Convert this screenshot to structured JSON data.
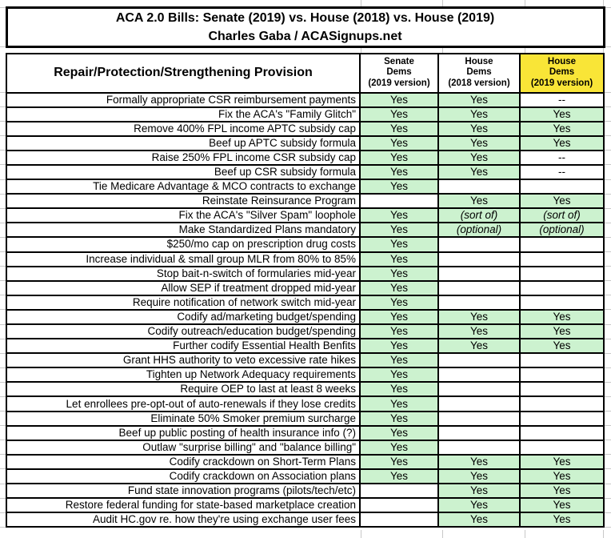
{
  "chart_data": {
    "type": "table",
    "title": "ACA 2.0 Bills: Senate (2019) vs. House (2018) vs. House (2019)",
    "subtitle": "Charles Gaba / ACASignups.net",
    "provision_header": "Repair/Protection/Strengthening Provision",
    "columns": [
      {
        "label": "Senate\nDems\n(2019 version)",
        "highlight": false
      },
      {
        "label": "House\nDems\n(2018 version)",
        "highlight": false
      },
      {
        "label": "House\nDems\n(2019 version)",
        "highlight": true
      }
    ],
    "rows": [
      {
        "provision": "Formally appropriate CSR reimbursement payments",
        "cells": [
          {
            "text": "Yes",
            "green": true
          },
          {
            "text": "Yes",
            "green": true
          },
          {
            "text": "--",
            "green": false
          }
        ]
      },
      {
        "provision": "Fix the ACA's \"Family Glitch\"",
        "cells": [
          {
            "text": "Yes",
            "green": true
          },
          {
            "text": "Yes",
            "green": true
          },
          {
            "text": "Yes",
            "green": true
          }
        ]
      },
      {
        "provision": "Remove 400% FPL income APTC subsidy cap",
        "cells": [
          {
            "text": "Yes",
            "green": true
          },
          {
            "text": "Yes",
            "green": true
          },
          {
            "text": "Yes",
            "green": true
          }
        ]
      },
      {
        "provision": "Beef up APTC subsidy formula",
        "cells": [
          {
            "text": "Yes",
            "green": true
          },
          {
            "text": "Yes",
            "green": true
          },
          {
            "text": "Yes",
            "green": true
          }
        ]
      },
      {
        "provision": "Raise 250% FPL income CSR subsidy cap",
        "cells": [
          {
            "text": "Yes",
            "green": true
          },
          {
            "text": "Yes",
            "green": true
          },
          {
            "text": "--",
            "green": false
          }
        ]
      },
      {
        "provision": "Beef up CSR subsidy formula",
        "cells": [
          {
            "text": "Yes",
            "green": true
          },
          {
            "text": "Yes",
            "green": true
          },
          {
            "text": "--",
            "green": false
          }
        ]
      },
      {
        "provision": "Tie Medicare Advantage & MCO contracts to exchange",
        "cells": [
          {
            "text": "Yes",
            "green": true
          },
          {
            "text": "",
            "green": false
          },
          {
            "text": "",
            "green": false
          }
        ]
      },
      {
        "provision": "Reinstate Reinsurance Program",
        "cells": [
          {
            "text": "",
            "green": false
          },
          {
            "text": "Yes",
            "green": true
          },
          {
            "text": "Yes",
            "green": true
          }
        ]
      },
      {
        "provision": "Fix the ACA's \"Silver Spam\" loophole",
        "cells": [
          {
            "text": "Yes",
            "green": true
          },
          {
            "text": "(sort of)",
            "green": true,
            "italic": true
          },
          {
            "text": "(sort of)",
            "green": true,
            "italic": true
          }
        ]
      },
      {
        "provision": "Make Standardized Plans mandatory",
        "cells": [
          {
            "text": "Yes",
            "green": true
          },
          {
            "text": "(optional)",
            "green": true,
            "italic": true
          },
          {
            "text": "(optional)",
            "green": true,
            "italic": true
          }
        ]
      },
      {
        "provision": "$250/mo cap on prescription drug costs",
        "cells": [
          {
            "text": "Yes",
            "green": true
          },
          {
            "text": "",
            "green": false
          },
          {
            "text": "",
            "green": false
          }
        ]
      },
      {
        "provision": "Increase individual & small group MLR from 80% to 85%",
        "cells": [
          {
            "text": "Yes",
            "green": true
          },
          {
            "text": "",
            "green": false
          },
          {
            "text": "",
            "green": false
          }
        ]
      },
      {
        "provision": "Stop bait-n-switch of formularies mid-year",
        "cells": [
          {
            "text": "Yes",
            "green": true
          },
          {
            "text": "",
            "green": false
          },
          {
            "text": "",
            "green": false
          }
        ]
      },
      {
        "provision": "Allow SEP if treatment dropped mid-year",
        "cells": [
          {
            "text": "Yes",
            "green": true
          },
          {
            "text": "",
            "green": false
          },
          {
            "text": "",
            "green": false
          }
        ]
      },
      {
        "provision": "Require notification of network switch mid-year",
        "cells": [
          {
            "text": "Yes",
            "green": true
          },
          {
            "text": "",
            "green": false
          },
          {
            "text": "",
            "green": false
          }
        ]
      },
      {
        "provision": "Codify ad/marketing budget/spending",
        "cells": [
          {
            "text": "Yes",
            "green": true
          },
          {
            "text": "Yes",
            "green": true
          },
          {
            "text": "Yes",
            "green": true
          }
        ]
      },
      {
        "provision": "Codify outreach/education budget/spending",
        "cells": [
          {
            "text": "Yes",
            "green": true
          },
          {
            "text": "Yes",
            "green": true
          },
          {
            "text": "Yes",
            "green": true
          }
        ]
      },
      {
        "provision": "Further codify Essential Health Benfits",
        "cells": [
          {
            "text": "Yes",
            "green": true
          },
          {
            "text": "Yes",
            "green": true
          },
          {
            "text": "Yes",
            "green": true
          }
        ]
      },
      {
        "provision": "Grant HHS authority to veto excessive rate hikes",
        "cells": [
          {
            "text": "Yes",
            "green": true
          },
          {
            "text": "",
            "green": false
          },
          {
            "text": "",
            "green": false
          }
        ]
      },
      {
        "provision": "Tighten up Network Adequacy requirements",
        "cells": [
          {
            "text": "Yes",
            "green": true
          },
          {
            "text": "",
            "green": false
          },
          {
            "text": "",
            "green": false
          }
        ]
      },
      {
        "provision": "Require OEP to last at least 8 weeks",
        "cells": [
          {
            "text": "Yes",
            "green": true
          },
          {
            "text": "",
            "green": false
          },
          {
            "text": "",
            "green": false
          }
        ]
      },
      {
        "provision": "Let enrollees pre-opt-out of auto-renewals if they lose credits",
        "cells": [
          {
            "text": "Yes",
            "green": true
          },
          {
            "text": "",
            "green": false
          },
          {
            "text": "",
            "green": false
          }
        ]
      },
      {
        "provision": "Eliminate 50% Smoker premium surcharge",
        "cells": [
          {
            "text": "Yes",
            "green": true
          },
          {
            "text": "",
            "green": false
          },
          {
            "text": "",
            "green": false
          }
        ]
      },
      {
        "provision": "Beef up public posting of health insurance info (?)",
        "cells": [
          {
            "text": "Yes",
            "green": true
          },
          {
            "text": "",
            "green": false
          },
          {
            "text": "",
            "green": false
          }
        ]
      },
      {
        "provision": "Outlaw \"surprise billing\" and \"balance billing\"",
        "cells": [
          {
            "text": "Yes",
            "green": true
          },
          {
            "text": "",
            "green": false
          },
          {
            "text": "",
            "green": false
          }
        ]
      },
      {
        "provision": "Codify crackdown on Short-Term Plans",
        "cells": [
          {
            "text": "Yes",
            "green": true
          },
          {
            "text": "Yes",
            "green": true
          },
          {
            "text": "Yes",
            "green": true
          }
        ]
      },
      {
        "provision": "Codify crackdown on Association plans",
        "cells": [
          {
            "text": "Yes",
            "green": true
          },
          {
            "text": "Yes",
            "green": true
          },
          {
            "text": "Yes",
            "green": true
          }
        ]
      },
      {
        "provision": "Fund state innovation programs (pilots/tech/etc)",
        "cells": [
          {
            "text": "",
            "green": false
          },
          {
            "text": "Yes",
            "green": true
          },
          {
            "text": "Yes",
            "green": true
          }
        ]
      },
      {
        "provision": "Restore federal funding for state-based marketplace creation",
        "cells": [
          {
            "text": "",
            "green": false
          },
          {
            "text": "Yes",
            "green": true
          },
          {
            "text": "Yes",
            "green": true
          }
        ]
      },
      {
        "provision": "Audit HC.gov re. how they're using exchange user fees",
        "cells": [
          {
            "text": "",
            "green": false
          },
          {
            "text": "Yes",
            "green": true
          },
          {
            "text": "Yes",
            "green": true
          }
        ]
      }
    ]
  },
  "colors": {
    "cell_green": "#CCF2CF",
    "header_yellow": "#F9E537",
    "border_black": "#000000",
    "gridline_gray": "#C8C8C8"
  }
}
